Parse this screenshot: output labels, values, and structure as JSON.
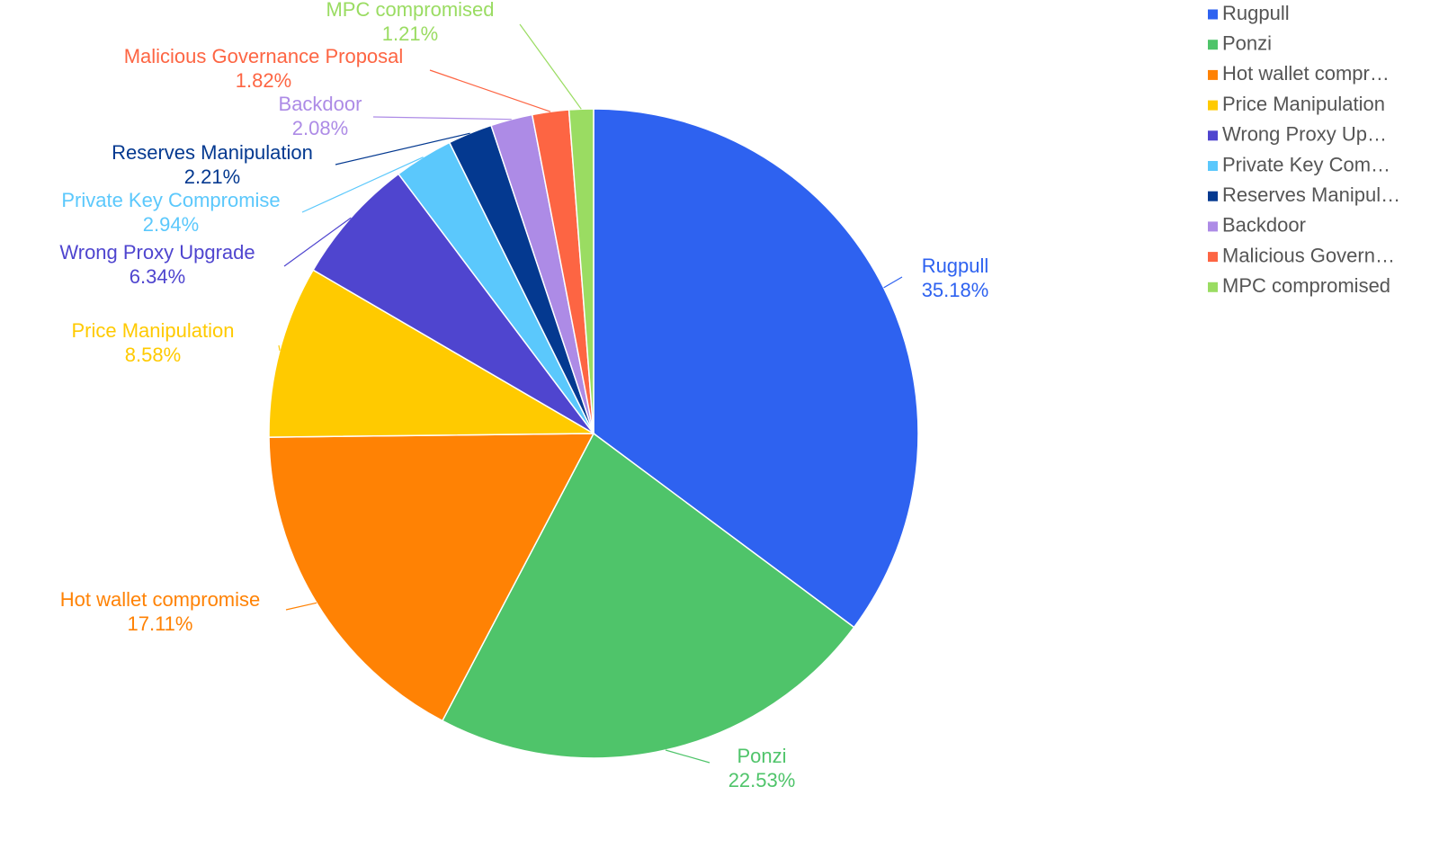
{
  "chart_data": {
    "type": "pie",
    "title": "",
    "legend_position": "right-top",
    "slices": [
      {
        "name": "Rugpull",
        "legend_label": "Rugpull",
        "value": 35.18,
        "label": "35.18%",
        "color": "#2e62f0"
      },
      {
        "name": "Ponzi",
        "legend_label": "Ponzi",
        "value": 22.53,
        "label": "22.53%",
        "color": "#4fc46a"
      },
      {
        "name": "Hot wallet compromise",
        "legend_label": "Hot wallet compr…",
        "value": 17.11,
        "label": "17.11%",
        "color": "#ff8204"
      },
      {
        "name": "Price Manipulation",
        "legend_label": "Price Manipulation",
        "value": 8.58,
        "label": "8.58%",
        "color": "#ffca00"
      },
      {
        "name": "Wrong Proxy Upgrade",
        "legend_label": "Wrong Proxy Up…",
        "value": 6.34,
        "label": "6.34%",
        "color": "#4f45cf"
      },
      {
        "name": "Private Key Compromise",
        "legend_label": "Private Key Com…",
        "value": 2.94,
        "label": "2.94%",
        "color": "#5bc8fc"
      },
      {
        "name": "Reserves Manipulation",
        "legend_label": "Reserves Manipul…",
        "value": 2.21,
        "label": "2.21%",
        "color": "#043990"
      },
      {
        "name": "Backdoor",
        "legend_label": "Backdoor",
        "value": 2.08,
        "label": "2.08%",
        "color": "#ad8be6"
      },
      {
        "name": "Malicious Governance Proposal",
        "legend_label": "Malicious Govern…",
        "value": 1.82,
        "label": "1.82%",
        "color": "#fd6543"
      },
      {
        "name": "MPC compromised",
        "legend_label": "MPC compromised",
        "value": 1.21,
        "label": "1.21%",
        "color": "#9adc62"
      }
    ]
  }
}
